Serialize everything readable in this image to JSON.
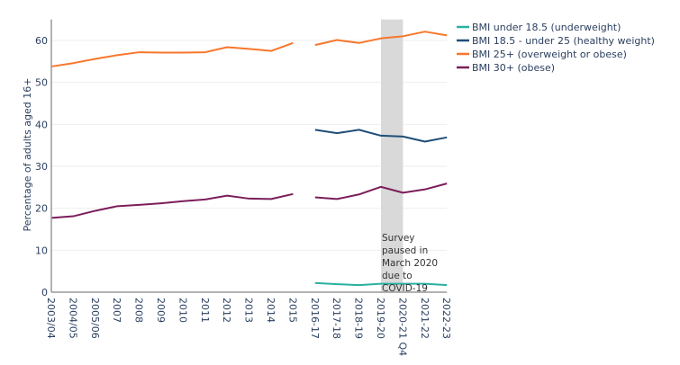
{
  "chart_data": {
    "type": "line",
    "ylabel": "Percentage of adults aged 16+",
    "xlabel": "",
    "ylim": [
      0,
      65
    ],
    "yticks": [
      0,
      10,
      20,
      30,
      40,
      50,
      60
    ],
    "grid": true,
    "legend_position": "top-right",
    "categories": [
      "2003/04",
      "2004/05",
      "2005/06",
      "2007",
      "2008",
      "2009",
      "2010",
      "2011",
      "2012",
      "2013",
      "2014",
      "2015",
      "2016-17",
      "2017-18",
      "2018-19",
      "2019-20",
      "2020-21 Q4",
      "2021-22",
      "2022-23"
    ],
    "series": [
      {
        "name": "BMI under 18.5 (underweight)",
        "color": "#2ab0a0",
        "values": [
          null,
          null,
          null,
          null,
          null,
          null,
          null,
          null,
          null,
          null,
          null,
          null,
          2.2,
          1.9,
          1.7,
          2.0,
          2.0,
          2.0,
          1.7
        ]
      },
      {
        "name": "BMI 18.5 - under 25 (healthy weight)",
        "color": "#1f4e79",
        "values": [
          null,
          null,
          null,
          null,
          null,
          null,
          null,
          null,
          null,
          null,
          null,
          null,
          38.7,
          37.9,
          38.7,
          37.3,
          37.1,
          35.9,
          36.9
        ]
      },
      {
        "name": "BMI 25+ (overweight or obese)",
        "color": "#f8762c",
        "values": [
          53.8,
          54.6,
          55.6,
          56.5,
          57.2,
          57.1,
          57.1,
          57.2,
          58.4,
          58.0,
          57.5,
          59.4,
          58.9,
          60.1,
          59.4,
          60.5,
          61.0,
          62.1,
          61.2
        ]
      },
      {
        "name": "BMI 30+ (obese)",
        "color": "#7b1e5a",
        "values": [
          17.7,
          18.1,
          19.4,
          20.5,
          20.8,
          21.2,
          21.7,
          22.1,
          23.0,
          22.3,
          22.2,
          23.4,
          22.6,
          22.2,
          23.3,
          25.1,
          23.7,
          24.5,
          25.9
        ]
      }
    ],
    "break_after": "2015",
    "shaded_region": {
      "from": "2019-20",
      "to": "2020-21 Q4",
      "color": "#d9d9d9"
    },
    "annotation": "Survey paused in March 2020 due to COVID-19",
    "annotation_lines": [
      "Survey",
      "paused in",
      "March 2020",
      "due to",
      "COVID-19"
    ]
  }
}
